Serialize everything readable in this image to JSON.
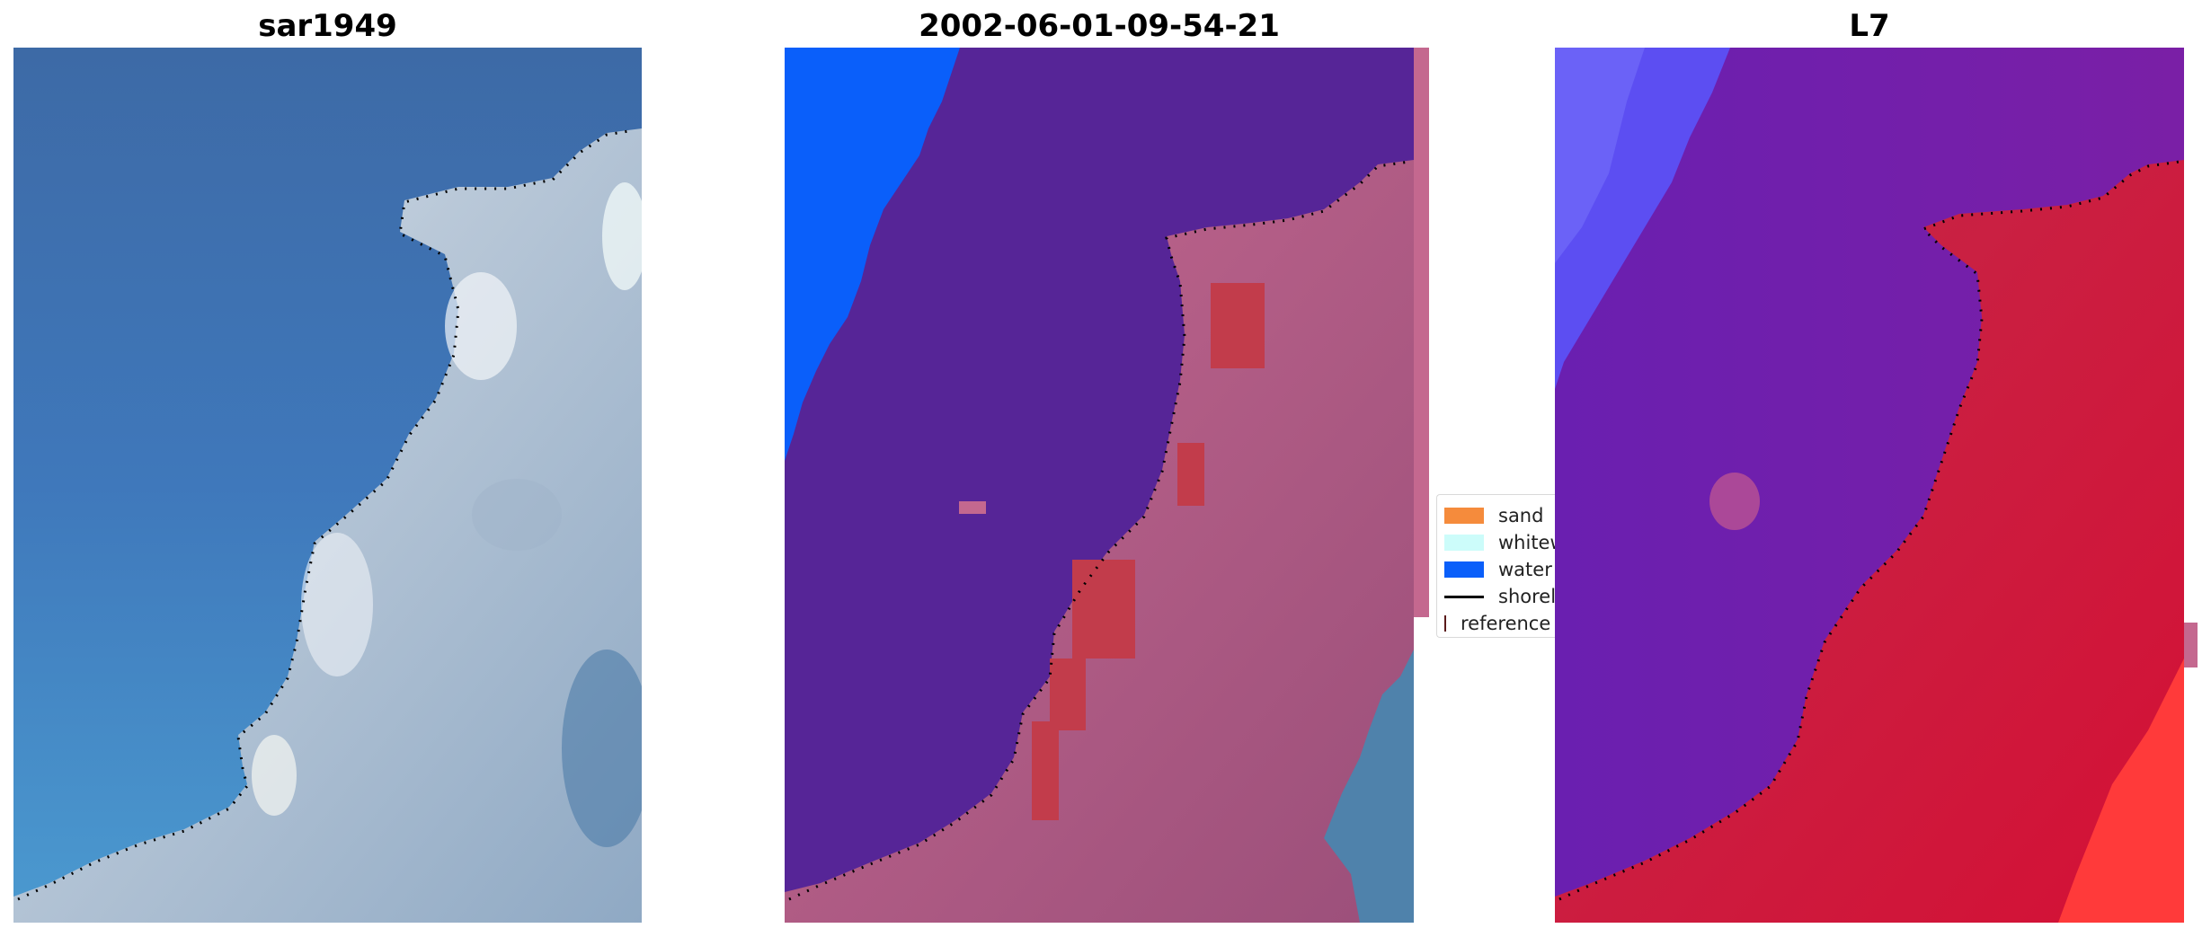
{
  "panels": [
    {
      "title": "sar1949"
    },
    {
      "title": "2002-06-01-09-54-21"
    },
    {
      "title": "L7"
    }
  ],
  "legend": {
    "items": [
      {
        "label": "sand",
        "color": "#f58b3c"
      },
      {
        "label": "whitewater",
        "color": "#ccfcfa"
      },
      {
        "label": "water",
        "color": "#0a5ffa"
      },
      {
        "label": "shoreline",
        "color": "#000000"
      },
      {
        "label": "reference shoreline",
        "color": "#9e2f2f"
      }
    ]
  }
}
